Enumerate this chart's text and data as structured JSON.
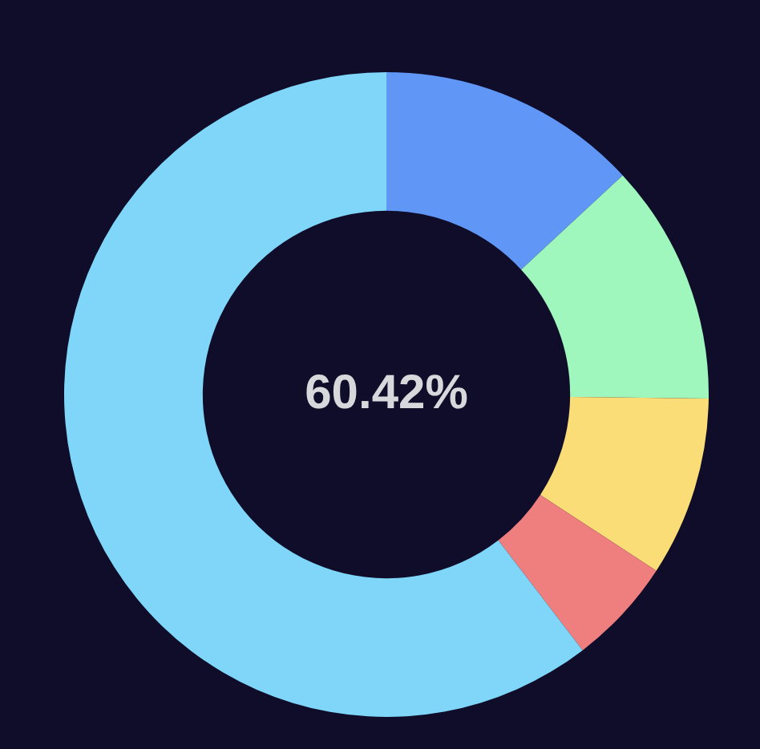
{
  "chart_data": {
    "type": "donut",
    "categories": [
      null,
      null,
      null,
      null,
      null
    ],
    "values": [
      13.1,
      12.1,
      9.0,
      5.38,
      60.42
    ],
    "colors": [
      "#6096f5",
      "#a0f7be",
      "#fadd76",
      "#ef7f7e",
      "#7fd6f8"
    ],
    "annotations": [
      "60.42%"
    ]
  }
}
